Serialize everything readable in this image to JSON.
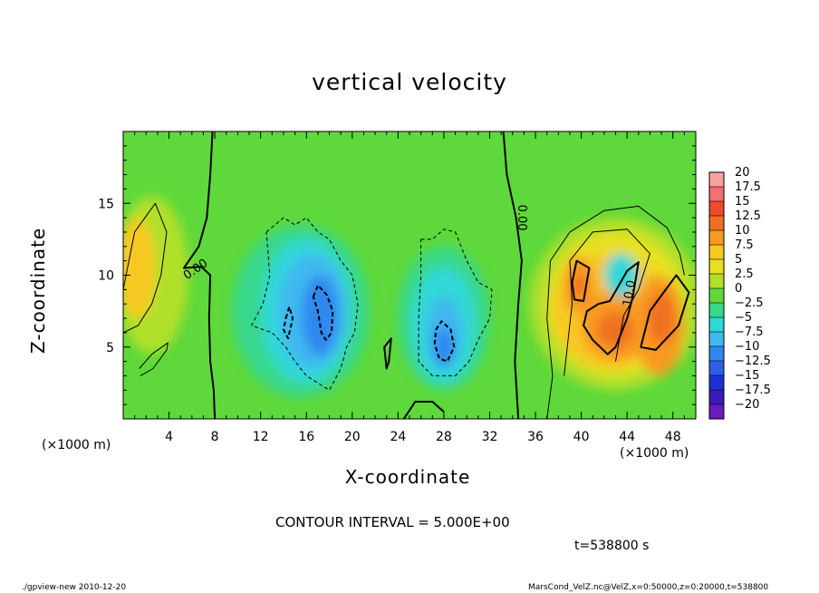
{
  "chart_data": {
    "type": "heatmap",
    "title": "vertical velocity",
    "xlabel": "X-coordinate",
    "ylabel": "Z-coordinate",
    "x_unit": "(×1000 m)",
    "xlim": [
      0,
      50
    ],
    "ylim": [
      0,
      20
    ],
    "x_ticks": [
      4,
      8,
      12,
      16,
      20,
      24,
      28,
      32,
      36,
      40,
      44,
      48
    ],
    "y_ticks": [
      5,
      10,
      15
    ],
    "colorbar": {
      "labels": [
        "20",
        "17.5",
        "15",
        "12.5",
        "10",
        "7.5",
        "5",
        "2.5",
        "0",
        "−2.5",
        "−5",
        "−7.5",
        "−10",
        "−12.5",
        "−15",
        "−17.5",
        "−20"
      ],
      "colors": [
        "#f8a0a0",
        "#f47070",
        "#ef4a2a",
        "#f07020",
        "#f89a20",
        "#f8c820",
        "#e8e020",
        "#b0e02c",
        "#5ed83a",
        "#38d88c",
        "#30d8d8",
        "#40b8f0",
        "#2f88f0",
        "#2c60e8",
        "#1c30d8",
        "#3a1ab8",
        "#6a1ac0"
      ]
    },
    "contour_labels": [
      "0.00",
      "0.00",
      "10.0"
    ],
    "contour_interval": "CONTOUR INTERVAL = 5.000E+00",
    "time_label": "t=538800 s",
    "grid": false
  },
  "footer": {
    "left": "./gpview-new   2010-12-20",
    "right": "MarsCond_VelZ.nc@VelZ,x=0:50000,z=0:20000,t=538800"
  }
}
